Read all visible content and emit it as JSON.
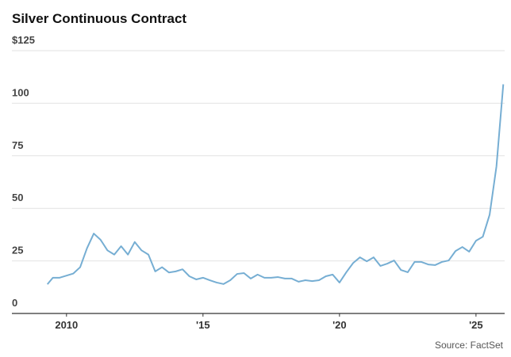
{
  "chart_data": {
    "type": "line",
    "title": "Silver Continuous Contract",
    "source": "Source: FactSet",
    "x": [
      2009.3,
      2009.5,
      2009.75,
      2010.0,
      2010.25,
      2010.5,
      2010.75,
      2011.0,
      2011.25,
      2011.5,
      2011.75,
      2012.0,
      2012.25,
      2012.5,
      2012.75,
      2013.0,
      2013.25,
      2013.5,
      2013.75,
      2014.0,
      2014.25,
      2014.5,
      2014.75,
      2015.0,
      2015.25,
      2015.5,
      2015.75,
      2016.0,
      2016.25,
      2016.5,
      2016.75,
      2017.0,
      2017.25,
      2017.5,
      2017.75,
      2018.0,
      2018.25,
      2018.5,
      2018.75,
      2019.0,
      2019.25,
      2019.5,
      2019.75,
      2020.0,
      2020.25,
      2020.5,
      2020.75,
      2021.0,
      2021.25,
      2021.5,
      2021.75,
      2022.0,
      2022.25,
      2022.5,
      2022.75,
      2023.0,
      2023.25,
      2023.5,
      2023.75,
      2024.0,
      2024.25,
      2024.5,
      2024.75,
      2025.0,
      2025.25,
      2025.5,
      2025.75,
      2026.0
    ],
    "series": [
      {
        "color": "#76aed3",
        "values": [
          13.9,
          17,
          17,
          18,
          19,
          22,
          31,
          38,
          35,
          30,
          28,
          32,
          28,
          34,
          30,
          28,
          20,
          22,
          19.5,
          20,
          21,
          17.7,
          16.2,
          17,
          15.8,
          14.7,
          14,
          15.8,
          18.8,
          19.2,
          16.6,
          18.5,
          17,
          17,
          17.3,
          16.6,
          16.6,
          15.1,
          15.8,
          15.4,
          15.8,
          17.7,
          18.5,
          14.7,
          19.6,
          24,
          26.7,
          24.8,
          26.7,
          22.6,
          23.7,
          25.2,
          20.7,
          19.6,
          24.5,
          24.5,
          23.3,
          23,
          24.5,
          25.2,
          29.7,
          31.6,
          29.4,
          34.6,
          36.5,
          47,
          70,
          109
        ]
      }
    ],
    "xlim": [
      2008,
      2026.05
    ],
    "xticks": [
      2010,
      {
        "value": 2015,
        "label": "'15"
      },
      {
        "value": 2020,
        "label": "'20"
      },
      {
        "value": 2025,
        "label": "'25"
      }
    ],
    "ylim": [
      0,
      125
    ],
    "yticks": [
      0,
      25,
      50,
      75,
      100,
      {
        "value": 125,
        "label": "$125"
      }
    ],
    "grid": true
  }
}
